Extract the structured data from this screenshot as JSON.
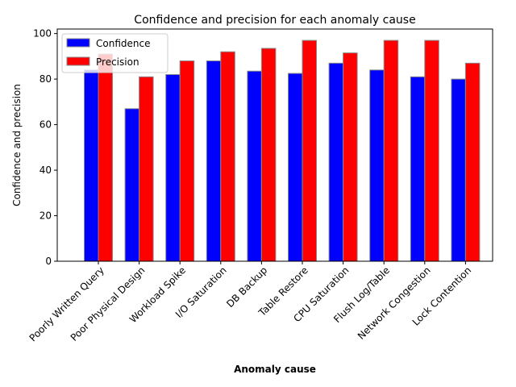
{
  "chart_data": {
    "type": "bar",
    "title": "Confidence and precision for each anomaly cause",
    "xlabel": "Anomaly cause",
    "ylabel": "Confidence and precision",
    "ylim": [
      0,
      102
    ],
    "yticks": [
      0,
      20,
      40,
      60,
      80,
      100
    ],
    "grid": false,
    "legend_position": "top-left",
    "categories": [
      "Poorly Written Query",
      "Poor Physical Design",
      "Workload Spike",
      "I/O Saturation",
      "DB Backup",
      "Table Restore",
      "CPU Saturation",
      "Flush Log/Table",
      "Network Congestion",
      "Lock Contention"
    ],
    "series": [
      {
        "name": "Confidence",
        "color": "#0000ff",
        "values": [
          84,
          67,
          82,
          88,
          83.5,
          82.5,
          87,
          84,
          81,
          80
        ]
      },
      {
        "name": "Precision",
        "color": "#ff0000",
        "values": [
          91,
          81,
          88,
          92,
          93.5,
          97,
          91.5,
          97,
          97,
          87
        ]
      }
    ]
  }
}
